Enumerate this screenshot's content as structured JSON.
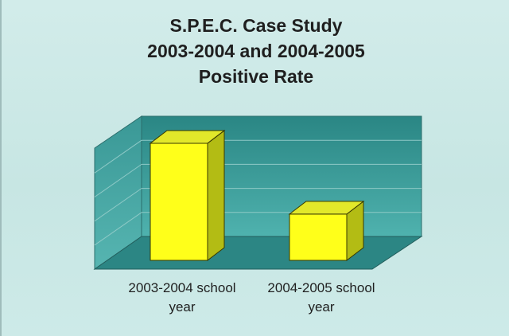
{
  "chart_data": {
    "type": "bar",
    "title": [
      "S.P.E.C. Case Study",
      "2003-2004 and 2004-2005",
      "Positive Rate"
    ],
    "categories": [
      [
        "2003-2004 school",
        "year"
      ],
      [
        "2004-2005 school",
        "year"
      ]
    ],
    "values": [
      86,
      34
    ],
    "ylim": [
      0,
      100
    ],
    "grid": true,
    "legend": "none",
    "style": "3d",
    "colors": {
      "bar_front": "#ffff1a",
      "bar_top": "#e2e82a",
      "bar_side": "#b3bc14",
      "back_wall": "#2e8f8d",
      "floor": "#2c8684"
    }
  }
}
